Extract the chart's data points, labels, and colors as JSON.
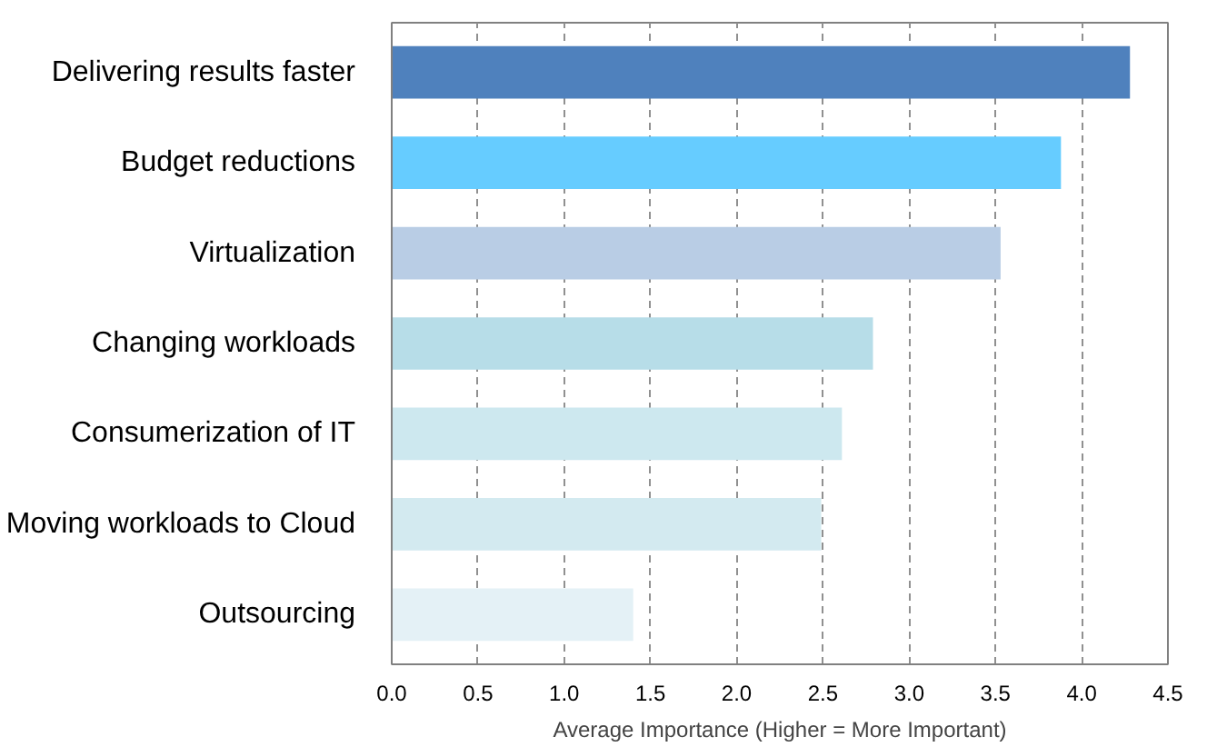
{
  "chart_data": {
    "type": "bar",
    "orientation": "horizontal",
    "xlabel": "Average Importance (Higher = More Important)",
    "categories": [
      "Delivering results faster",
      "Budget reductions",
      "Virtualization",
      "Changing workloads",
      "Consumerization of IT",
      "Moving workloads to Cloud",
      "Outsourcing"
    ],
    "values": [
      4.28,
      3.88,
      3.53,
      2.79,
      2.61,
      2.49,
      1.4
    ],
    "colors": [
      "#4f81bd",
      "#66ccff",
      "#b9cde5",
      "#b7dde8",
      "#cde8ef",
      "#d3eaf0",
      "#e4f1f6"
    ],
    "xlim": [
      0,
      4.5
    ],
    "xticks": [
      {
        "value": 0,
        "label": "0.0"
      },
      0.5,
      {
        "value": 1,
        "label": "1.0"
      },
      1.5,
      {
        "value": 2,
        "label": "2.0"
      },
      2.5,
      {
        "value": 3,
        "label": "3.0"
      },
      3.5,
      {
        "value": 4,
        "label": "4.0"
      },
      4.5
    ],
    "grid": "x"
  }
}
